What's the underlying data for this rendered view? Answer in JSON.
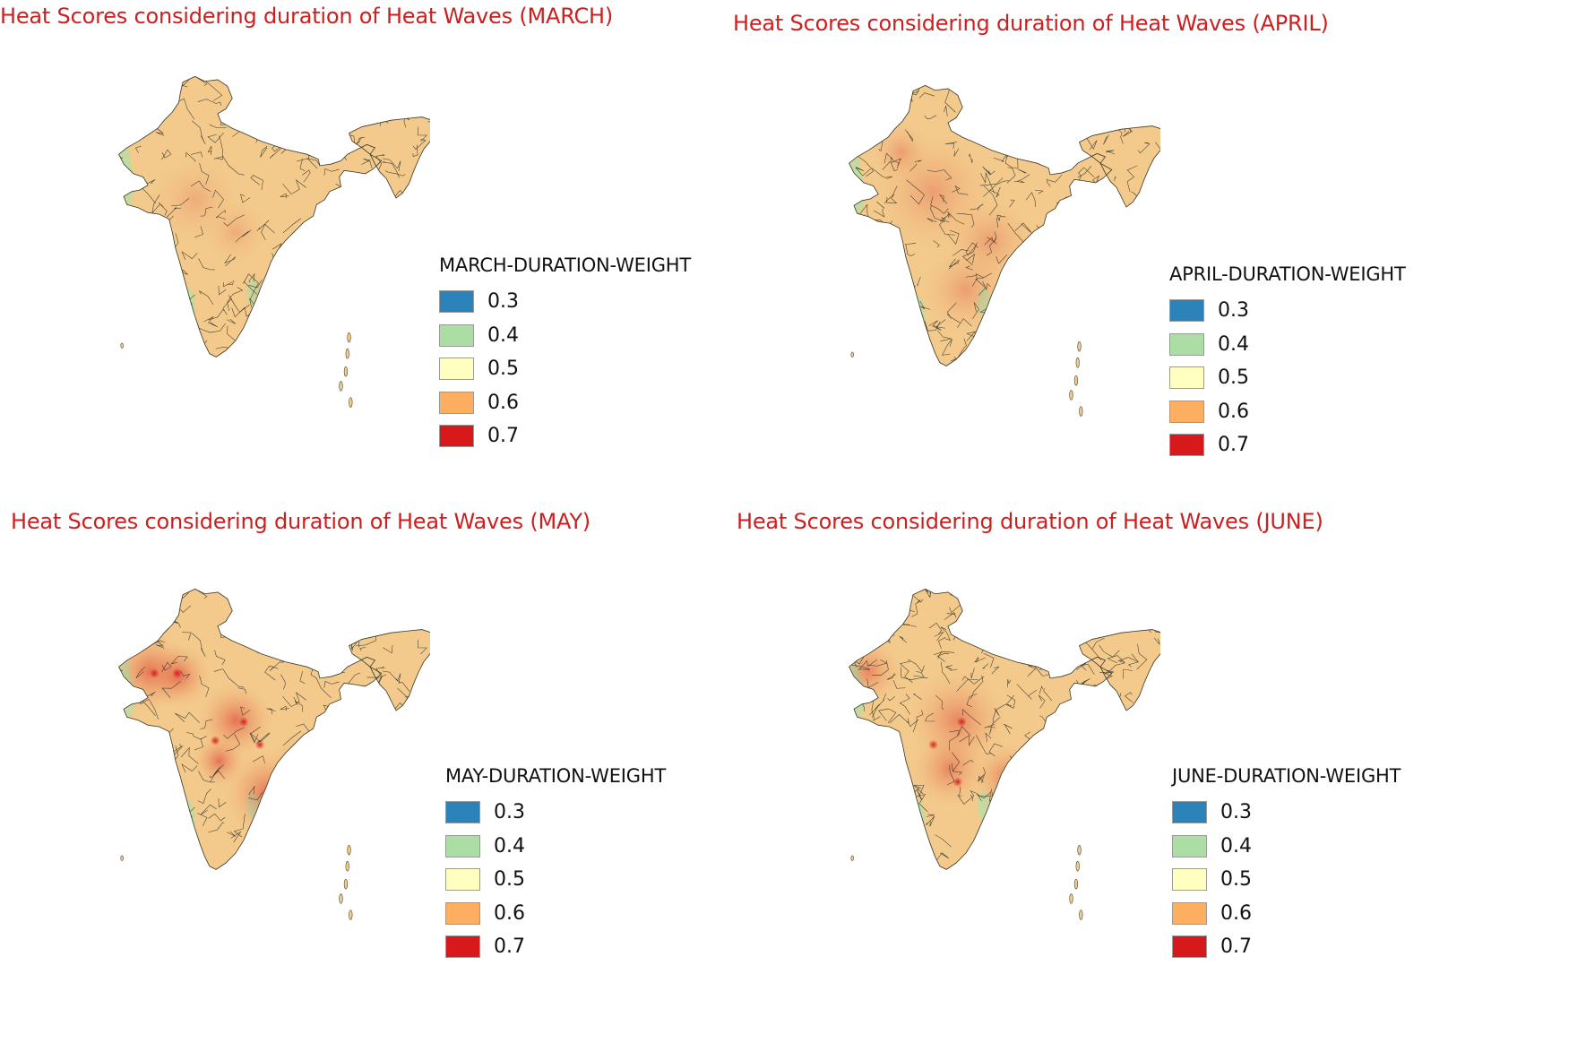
{
  "legend_classes": [
    {
      "value": "0.3",
      "color": "#2b83ba"
    },
    {
      "value": "0.4",
      "color": "#abdda4"
    },
    {
      "value": "0.5",
      "color": "#ffffbf"
    },
    {
      "value": "0.6",
      "color": "#fdae61"
    },
    {
      "value": "0.7",
      "color": "#d7191c"
    }
  ],
  "colors": {
    "title": "#cc1f1f",
    "district_border": "#3a3a2a",
    "base_fill": "#f3c98c",
    "warm_fill": "#f0a868",
    "coast_green": "#b8dda4",
    "hotspot": "#d7191c"
  },
  "panels": [
    {
      "id": "march",
      "title": "Heat Scores considering duration of Heat Waves (MARCH)",
      "legend_title": "MARCH-DURATION-WEIGHT",
      "intensity": 0.3
    },
    {
      "id": "april",
      "title": "Heat Scores considering duration of Heat Waves (APRIL)",
      "legend_title": "APRIL-DURATION-WEIGHT",
      "intensity": 0.45
    },
    {
      "id": "may",
      "title": "Heat Scores considering duration of Heat Waves (MAY)",
      "legend_title": "MAY-DURATION-WEIGHT",
      "intensity": 0.9
    },
    {
      "id": "june",
      "title": "Heat Scores considering duration of Heat Waves (JUNE)",
      "legend_title": "JUNE-DURATION-WEIGHT",
      "intensity": 0.7
    }
  ]
}
